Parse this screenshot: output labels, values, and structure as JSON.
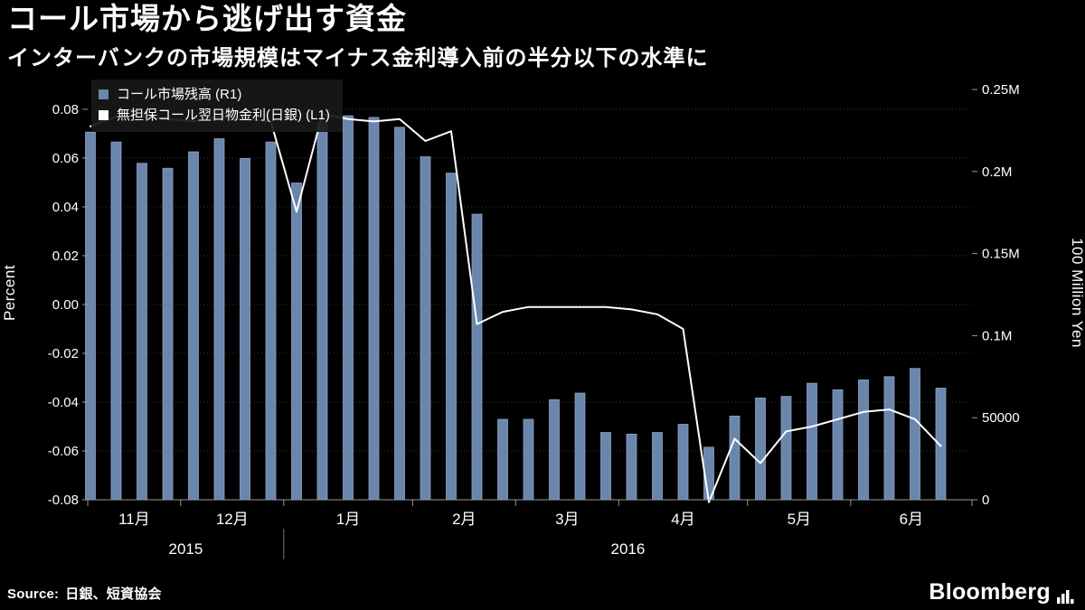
{
  "header": {
    "title": "コール市場から逃げ出す資金",
    "subtitle": "インターバンクの市場規模はマイナス金利導入前の半分以下の水準に"
  },
  "legend": {
    "items": [
      {
        "label": "コール市場残高 (R1)",
        "color": "#6b86ad",
        "type": "bar"
      },
      {
        "label": "無担保コール翌日物金利(日銀) (L1)",
        "color": "#ffffff",
        "type": "line"
      }
    ]
  },
  "chart_data": {
    "type": "combo",
    "title": "コール市場から逃げ出す資金",
    "left_axis": {
      "title": "Percent",
      "range": [
        -0.08,
        0.0896
      ],
      "ticks": [
        {
          "label": "0.08",
          "value": 0.08
        },
        {
          "label": "0.06",
          "value": 0.06
        },
        {
          "label": "0.04",
          "value": 0.04
        },
        {
          "label": "0.02",
          "value": 0.02
        },
        {
          "label": "0.00",
          "value": 0.0
        },
        {
          "label": "-0.02",
          "value": -0.02
        },
        {
          "label": "-0.04",
          "value": -0.04
        },
        {
          "label": "-0.06",
          "value": -0.06
        },
        {
          "label": "-0.08",
          "value": -0.08
        }
      ]
    },
    "right_axis": {
      "title": "100 Million Yen",
      "range": [
        0,
        252200
      ],
      "ticks": [
        {
          "label": "0.25M",
          "value": 250000
        },
        {
          "label": "0.2M",
          "value": 200000
        },
        {
          "label": "0.15M",
          "value": 150000
        },
        {
          "label": "0.1M",
          "value": 100000
        },
        {
          "label": "50000",
          "value": 50000
        },
        {
          "label": "0",
          "value": 0
        }
      ]
    },
    "x_axis": {
      "months": [
        {
          "label": "11月",
          "count": 4,
          "year": 0
        },
        {
          "label": "12月",
          "count": 4,
          "year": 0
        },
        {
          "label": "1月",
          "count": 5,
          "year": 1
        },
        {
          "label": "2月",
          "count": 4,
          "year": 1
        },
        {
          "label": "3月",
          "count": 4,
          "year": 1
        },
        {
          "label": "4月",
          "count": 5,
          "year": 1
        },
        {
          "label": "5月",
          "count": 4,
          "year": 1
        },
        {
          "label": "6月",
          "count": 4,
          "year": 1
        }
      ],
      "years": [
        {
          "label": "2015"
        },
        {
          "label": "2016"
        }
      ]
    },
    "series": [
      {
        "name": "コール市場残高 (R1)",
        "type": "bar",
        "axis": "right",
        "color": "#6b86ad",
        "edge_color": "#92a7c9",
        "values": [
          224000,
          218000,
          205000,
          202000,
          212000,
          220000,
          208000,
          218000,
          193000,
          230000,
          234000,
          233000,
          227000,
          209000,
          199000,
          174000,
          49000,
          49000,
          61000,
          65000,
          41000,
          40000,
          41000,
          46000,
          32000,
          51000,
          62000,
          63000,
          71000,
          67000,
          73000,
          75000,
          80000,
          68000
        ]
      },
      {
        "name": "無担保コール翌日物金利(日銀) (L1)",
        "type": "line",
        "axis": "left",
        "color": "#ffffff",
        "values": [
          0.073,
          0.077,
          0.077,
          0.076,
          0.075,
          0.077,
          0.076,
          0.075,
          0.038,
          0.078,
          0.076,
          0.075,
          0.076,
          0.067,
          0.071,
          -0.008,
          -0.003,
          -0.001,
          -0.001,
          -0.001,
          -0.001,
          -0.002,
          -0.004,
          -0.01,
          -0.081,
          -0.055,
          -0.065,
          -0.052,
          -0.05,
          -0.047,
          -0.044,
          -0.043,
          -0.047,
          -0.058
        ]
      }
    ],
    "grid": "dotted-horizontal",
    "legend_position": "top-left"
  },
  "footer": {
    "source_label": "Source:",
    "source_value": "日銀、短資協会",
    "brand": "Bloomberg"
  },
  "colors": {
    "background": "#000000",
    "grid": "#3a3a3a",
    "axis": "#999999",
    "text": "#ffffff",
    "bar": "#6b86ad",
    "line": "#ffffff"
  }
}
